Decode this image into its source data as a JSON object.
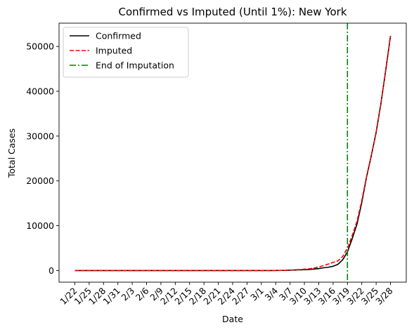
{
  "chart_data": {
    "type": "line",
    "title": "Confirmed vs Imputed (Until 1%): New York",
    "xlabel": "Date",
    "ylabel": "Total Cases",
    "x": [
      "1/22",
      "1/23",
      "1/24",
      "1/25",
      "1/26",
      "1/27",
      "1/28",
      "1/29",
      "1/30",
      "1/31",
      "2/1",
      "2/2",
      "2/3",
      "2/4",
      "2/5",
      "2/6",
      "2/7",
      "2/8",
      "2/9",
      "2/10",
      "2/11",
      "2/12",
      "2/13",
      "2/14",
      "2/15",
      "2/16",
      "2/17",
      "2/18",
      "2/19",
      "2/20",
      "2/21",
      "2/22",
      "2/23",
      "2/24",
      "2/25",
      "2/26",
      "2/27",
      "2/28",
      "2/29",
      "3/1",
      "3/2",
      "3/3",
      "3/4",
      "3/5",
      "3/6",
      "3/7",
      "3/8",
      "3/9",
      "3/10",
      "3/11",
      "3/12",
      "3/13",
      "3/14",
      "3/15",
      "3/16",
      "3/17",
      "3/18",
      "3/19",
      "3/20",
      "3/21",
      "3/22",
      "3/23",
      "3/24",
      "3/25",
      "3/26",
      "3/27",
      "3/28"
    ],
    "x_tick_labels": [
      "1/22",
      "1/25",
      "1/28",
      "1/31",
      "2/3",
      "2/6",
      "2/9",
      "2/12",
      "2/15",
      "2/18",
      "2/21",
      "2/24",
      "2/27",
      "3/1",
      "3/4",
      "3/7",
      "3/10",
      "3/13",
      "3/16",
      "3/19",
      "3/22",
      "3/25",
      "3/28"
    ],
    "y_ticks": [
      0,
      10000,
      20000,
      30000,
      40000,
      50000
    ],
    "ylim": [
      -2600,
      55200
    ],
    "series": [
      {
        "name": "Confirmed",
        "color": "#000000",
        "style": "solid",
        "values": [
          0,
          0,
          0,
          0,
          0,
          0,
          0,
          0,
          0,
          0,
          0,
          0,
          0,
          0,
          0,
          0,
          0,
          0,
          0,
          0,
          0,
          0,
          0,
          0,
          0,
          0,
          0,
          0,
          0,
          0,
          0,
          0,
          0,
          0,
          0,
          0,
          0,
          0,
          0,
          1,
          1,
          2,
          11,
          22,
          33,
          76,
          105,
          142,
          173,
          220,
          328,
          421,
          613,
          729,
          950,
          1374,
          2382,
          4152,
          7102,
          10356,
          15168,
          20875,
          25665,
          30811,
          37258,
          44635,
          52318
        ]
      },
      {
        "name": "Imputed",
        "color": "#ff0000",
        "style": "dashed",
        "values": [
          0,
          0,
          0,
          0,
          0,
          0,
          0,
          0,
          0,
          0,
          0,
          0,
          0,
          0,
          0,
          0,
          0,
          0,
          0,
          0,
          0,
          0,
          0,
          0,
          0,
          0,
          0,
          0,
          0,
          0,
          0,
          0,
          0,
          0,
          0,
          0,
          0,
          0,
          0,
          2,
          3,
          5,
          14,
          28,
          45,
          95,
          150,
          220,
          290,
          380,
          550,
          780,
          1100,
          1450,
          1800,
          2150,
          3100,
          5000,
          7800,
          11000,
          15600,
          21000,
          25800,
          30900,
          37300,
          44700,
          52400
        ]
      },
      {
        "name": "End of Imputation",
        "color": "#008000",
        "style": "dashdot",
        "vline_x": "3/19"
      }
    ],
    "legend_position": "upper left",
    "grid": false
  }
}
